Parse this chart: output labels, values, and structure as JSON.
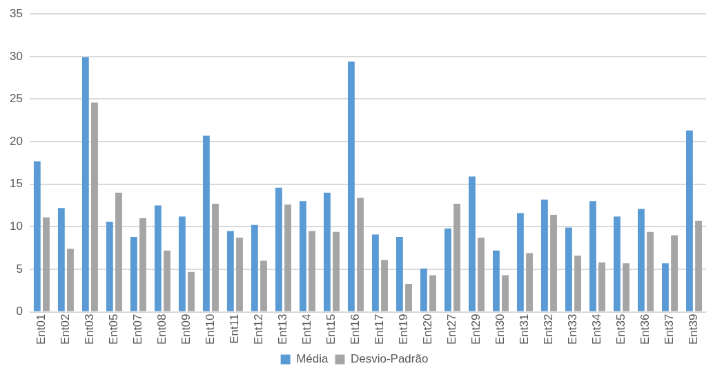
{
  "chart_data": {
    "type": "bar",
    "categories": [
      "Ent01",
      "Ent02",
      "Ent03",
      "Ent05",
      "Ent07",
      "Ent08",
      "Ent09",
      "Ent10",
      "Ent11",
      "Ent12",
      "Ent13",
      "Ent14",
      "Ent15",
      "Ent16",
      "Ent17",
      "Ent19",
      "Ent20",
      "Ent27",
      "Ent29",
      "Ent30",
      "Ent31",
      "Ent32",
      "Ent33",
      "Ent34",
      "Ent35",
      "Ent36",
      "Ent37",
      "Ent39"
    ],
    "series": [
      {
        "name": "Média",
        "color": "#5b9bd5",
        "values": [
          17.7,
          12.2,
          29.9,
          10.6,
          8.8,
          12.5,
          11.2,
          20.7,
          9.5,
          10.2,
          14.6,
          13.0,
          14.0,
          29.4,
          9.1,
          8.8,
          5.1,
          9.8,
          15.9,
          7.2,
          11.6,
          13.2,
          9.9,
          13.0,
          11.2,
          12.1,
          5.7,
          21.3
        ]
      },
      {
        "name": "Desvio-Padrão",
        "color": "#a5a5a5",
        "values": [
          11.1,
          7.4,
          24.6,
          14.0,
          11.0,
          7.2,
          4.7,
          12.7,
          8.7,
          6.0,
          12.6,
          9.5,
          9.4,
          13.4,
          6.1,
          3.3,
          4.3,
          12.7,
          8.7,
          4.3,
          6.9,
          11.4,
          6.6,
          5.8,
          5.7,
          9.4,
          9.0,
          10.7
        ]
      }
    ],
    "ylim": [
      0,
      35
    ],
    "yticks": [
      0,
      5,
      10,
      15,
      20,
      25,
      30,
      35
    ],
    "grid": "y",
    "legend": "bottom"
  }
}
